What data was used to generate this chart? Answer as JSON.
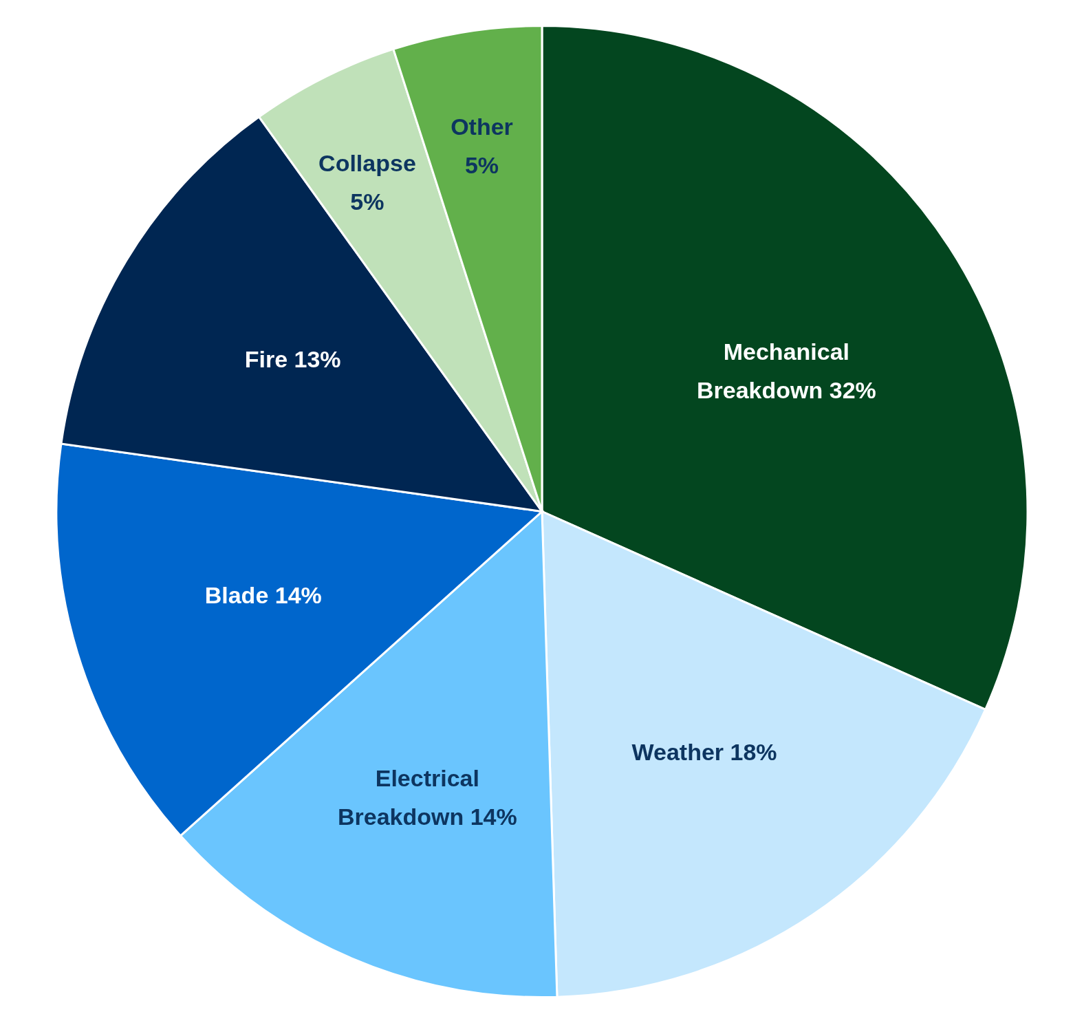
{
  "chart_data": {
    "type": "pie",
    "categories": [
      "Mechanical Breakdown",
      "Weather",
      "Electrical Breakdown",
      "Blade",
      "Fire",
      "Collapse",
      "Other"
    ],
    "values": [
      32,
      18,
      14,
      14,
      13,
      5,
      5
    ],
    "value_labels": [
      "32%",
      "18%",
      "14%",
      "14%",
      "13%",
      "5%",
      "5%"
    ],
    "colors": [
      "#03461f",
      "#c4e7fd",
      "#6ac5fe",
      "#0066cc",
      "#002652",
      "#c0e1b9",
      "#62b04b"
    ]
  }
}
